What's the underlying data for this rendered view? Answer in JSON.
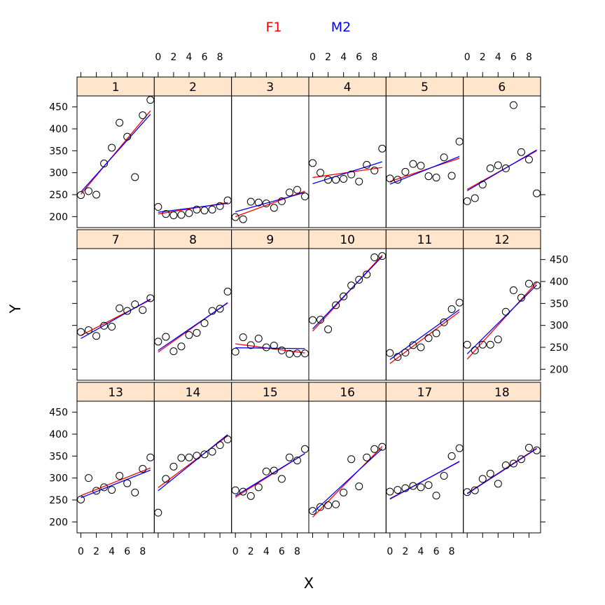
{
  "chart_data": {
    "type": "scatter",
    "layout": {
      "columns": 6,
      "rows": 3
    },
    "xlabel": "X",
    "ylabel": "Y",
    "xlim": [
      -0.5,
      9.5
    ],
    "ylim": [
      175,
      475
    ],
    "x_ticks": [
      0,
      2,
      4,
      6,
      8
    ],
    "y_ticks": [
      200,
      250,
      300,
      350,
      400,
      450
    ],
    "legend": {
      "position": "top",
      "entries": [
        {
          "label": "F1",
          "color": "#ff0000"
        },
        {
          "label": "M2",
          "color": "#0000ff"
        }
      ]
    },
    "colors": {
      "strip": "#ffe5cc",
      "points": "#000000"
    },
    "x": [
      0,
      1,
      2,
      3,
      4,
      5,
      6,
      7,
      8,
      9
    ],
    "panels": [
      {
        "label": "1",
        "y": [
          249,
          258,
          250,
          321,
          357,
          414,
          382,
          290,
          431,
          466
        ],
        "fit_F1": [
          [
            0,
            251
          ],
          [
            9,
            441
          ]
        ],
        "fit_M2": [
          [
            0,
            256
          ],
          [
            9,
            433
          ]
        ]
      },
      {
        "label": "2",
        "y": [
          222,
          206,
          203,
          204,
          208,
          216,
          214,
          216,
          224,
          237
        ],
        "fit_F1": [
          [
            0,
            206
          ],
          [
            9,
            232
          ]
        ],
        "fit_M2": [
          [
            0,
            210
          ],
          [
            9,
            230
          ]
        ]
      },
      {
        "label": "3",
        "y": [
          199,
          194,
          234,
          232,
          230,
          220,
          235,
          255,
          261,
          246
        ],
        "fit_F1": [
          [
            0,
            200
          ],
          [
            9,
            258
          ]
        ],
        "fit_M2": [
          [
            0,
            211
          ],
          [
            9,
            255
          ]
        ]
      },
      {
        "label": "4",
        "y": [
          322,
          300,
          284,
          284,
          286,
          296,
          280,
          318,
          305,
          355
        ],
        "fit_F1": [
          [
            0,
            289
          ],
          [
            9,
            312
          ]
        ],
        "fit_M2": [
          [
            0,
            275
          ],
          [
            9,
            325
          ]
        ]
      },
      {
        "label": "5",
        "y": [
          287,
          284,
          302,
          320,
          316,
          292,
          289,
          335,
          293,
          371
        ],
        "fit_F1": [
          [
            0,
            280
          ],
          [
            9,
            333
          ]
        ],
        "fit_M2": [
          [
            0,
            274
          ],
          [
            9,
            337
          ]
        ]
      },
      {
        "label": "6",
        "y": [
          235,
          242,
          273,
          310,
          317,
          310,
          454,
          347,
          330,
          253
        ],
        "fit_F1": [
          [
            0,
            262
          ],
          [
            9,
            350
          ]
        ],
        "fit_M2": [
          [
            0,
            259
          ],
          [
            9,
            352
          ]
        ]
      },
      {
        "label": "7",
        "y": [
          285,
          289,
          276,
          299,
          297,
          339,
          333,
          348,
          335,
          362
        ],
        "fit_F1": [
          [
            0,
            277
          ],
          [
            9,
            358
          ]
        ],
        "fit_M2": [
          [
            0,
            270
          ],
          [
            9,
            360
          ]
        ]
      },
      {
        "label": "8",
        "y": [
          263,
          274,
          241,
          252,
          278,
          283,
          305,
          333,
          338,
          377
        ],
        "fit_F1": [
          [
            0,
            239
          ],
          [
            9,
            352
          ]
        ],
        "fit_M2": [
          [
            0,
            243
          ],
          [
            9,
            351
          ]
        ]
      },
      {
        "label": "9",
        "y": [
          240,
          273,
          255,
          270,
          250,
          254,
          243,
          235,
          236,
          236
        ],
        "fit_F1": [
          [
            0,
            258
          ],
          [
            9,
            237
          ]
        ],
        "fit_M2": [
          [
            0,
            249
          ],
          [
            9,
            247
          ]
        ]
      },
      {
        "label": "10",
        "y": [
          312,
          313,
          291,
          346,
          366,
          391,
          404,
          416,
          455,
          458
        ],
        "fit_F1": [
          [
            0,
            287
          ],
          [
            9,
            460
          ]
        ],
        "fit_M2": [
          [
            0,
            292
          ],
          [
            9,
            457
          ]
        ]
      },
      {
        "label": "11",
        "y": [
          237,
          228,
          238,
          255,
          250,
          271,
          282,
          307,
          337,
          352
        ],
        "fit_F1": [
          [
            0,
            213
          ],
          [
            9,
            331
          ]
        ],
        "fit_M2": [
          [
            0,
            222
          ],
          [
            9,
            336
          ]
        ]
      },
      {
        "label": "12",
        "y": [
          256,
          243,
          256,
          256,
          268,
          331,
          380,
          363,
          395,
          391
        ],
        "fit_F1": [
          [
            0,
            223
          ],
          [
            9,
            398
          ]
        ],
        "fit_M2": [
          [
            0,
            235
          ],
          [
            9,
            392
          ]
        ]
      },
      {
        "label": "13",
        "y": [
          251,
          300,
          271,
          279,
          273,
          305,
          288,
          267,
          321,
          347
        ],
        "fit_F1": [
          [
            0,
            260
          ],
          [
            9,
            323
          ]
        ],
        "fit_M2": [
          [
            0,
            255
          ],
          [
            9,
            318
          ]
        ]
      },
      {
        "label": "14",
        "y": [
          221,
          298,
          326,
          346,
          347,
          351,
          354,
          360,
          375,
          388
        ],
        "fit_F1": [
          [
            0,
            278
          ],
          [
            9,
            396
          ]
        ],
        "fit_M2": [
          [
            0,
            271
          ],
          [
            9,
            399
          ]
        ]
      },
      {
        "label": "15",
        "y": [
          272,
          269,
          259,
          279,
          315,
          317,
          298,
          347,
          340,
          366
        ],
        "fit_F1": [
          [
            0,
            256
          ],
          [
            9,
            356
          ]
        ],
        "fit_M2": [
          [
            0,
            259
          ],
          [
            9,
            356
          ]
        ]
      },
      {
        "label": "16",
        "y": [
          225,
          234,
          238,
          240,
          267,
          343,
          281,
          347,
          366,
          371
        ],
        "fit_F1": [
          [
            0,
            211
          ],
          [
            9,
            372
          ]
        ],
        "fit_M2": [
          [
            0,
            221
          ],
          [
            9,
            367
          ]
        ]
      },
      {
        "label": "17",
        "y": [
          269,
          273,
          277,
          282,
          279,
          284,
          260,
          305,
          350,
          368
        ],
        "fit_F1": [
          [
            0,
            253
          ],
          [
            9,
            337
          ]
        ],
        "fit_M2": [
          [
            0,
            252
          ],
          [
            9,
            338
          ]
        ]
      },
      {
        "label": "18",
        "y": [
          268,
          272,
          298,
          310,
          287,
          329,
          333,
          343,
          369,
          363
        ],
        "fit_F1": [
          [
            0,
            265
          ],
          [
            9,
            368
          ]
        ],
        "fit_M2": [
          [
            0,
            264
          ],
          [
            9,
            367
          ]
        ]
      }
    ]
  }
}
